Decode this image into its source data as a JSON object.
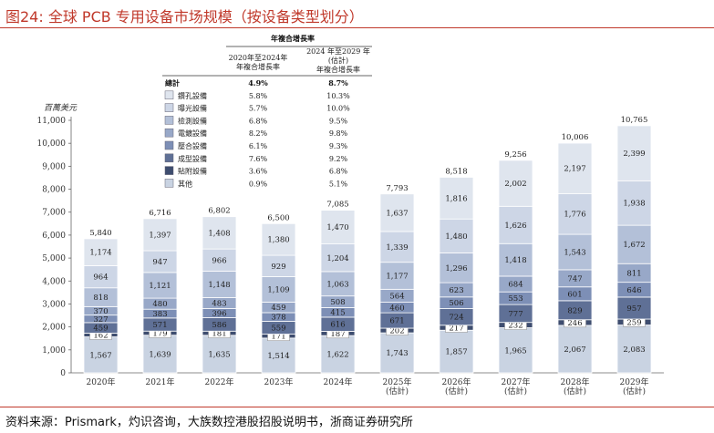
{
  "header": {
    "title": "图24:   全球 PCB 专用设备市场规模（按设备类型划分）"
  },
  "footer": {
    "source": "资料来源：Prismark，灼识咨询，大族数控港股招股说明书，浙商证券研究所"
  },
  "colors": {
    "accent": "#c0392b",
    "series": [
      "#c9d3e2",
      "#3e4d6f",
      "#5f7096",
      "#7d8fb6",
      "#98a8c8",
      "#b3c0d8",
      "#cdd6e6",
      "#dfe5ee"
    ]
  },
  "chart_data": {
    "type": "bar",
    "stacked": true,
    "ylabel": "百萬美元",
    "ylim": [
      0,
      11000
    ],
    "yticks": [
      0,
      1000,
      2000,
      3000,
      4000,
      5000,
      6000,
      7000,
      8000,
      9000,
      10000,
      11000
    ],
    "ytick_labels": [
      "0",
      "1,000",
      "2,000",
      "3,000",
      "4,000",
      "5,000",
      "6,000",
      "7,000",
      "8,000",
      "9,000",
      "10,000",
      "11,000"
    ],
    "categories": [
      "2020年",
      "2021年",
      "2022年",
      "2023年",
      "2024年",
      "2025年\n(估計)",
      "2026年\n(估計)",
      "2027年\n(估計)",
      "2028年\n(估計)",
      "2029年\n(估計)"
    ],
    "totals": [
      5840,
      6716,
      6802,
      6500,
      7085,
      7793,
      8518,
      9256,
      10006,
      10765
    ],
    "total_labels": [
      "5,840",
      "6,716",
      "6,802",
      "6,500",
      "7,085",
      "7,793",
      "8,518",
      "9,256",
      "10,006",
      "10,765"
    ],
    "series": [
      {
        "name": "其他",
        "values": [
          1567,
          1639,
          1635,
          1514,
          1622,
          1743,
          1857,
          1965,
          2067,
          2083
        ],
        "labels": [
          "1,567",
          "1,639",
          "1,635",
          "1,514",
          "1,622",
          "1,743",
          "1,857",
          "1,965",
          "2,067",
          "2,083"
        ]
      },
      {
        "name": "貼附設備",
        "values": [
          162,
          179,
          181,
          171,
          187,
          202,
          217,
          232,
          246,
          259
        ],
        "labels": [
          "162",
          "179",
          "181",
          "171",
          "187",
          "202",
          "217",
          "232",
          "246",
          "259"
        ]
      },
      {
        "name": "成型設備",
        "values": [
          459,
          571,
          586,
          559,
          616,
          671,
          724,
          777,
          829,
          957
        ],
        "labels": [
          "459",
          "571",
          "586",
          "559",
          "616",
          "671",
          "724",
          "777",
          "829",
          "957"
        ]
      },
      {
        "name": "壓合設備",
        "values": [
          327,
          383,
          396,
          378,
          415,
          460,
          506,
          553,
          601,
          646
        ],
        "labels": [
          "327",
          "383",
          "396",
          "378",
          "415",
          "460",
          "506",
          "553",
          "601",
          "646"
        ]
      },
      {
        "name": "電鍍設備",
        "values": [
          370,
          480,
          483,
          459,
          508,
          564,
          623,
          684,
          747,
          811
        ],
        "labels": [
          "370",
          "480",
          "483",
          "459",
          "508",
          "564",
          "623",
          "684",
          "747",
          "811"
        ]
      },
      {
        "name": "檢測設備",
        "values": [
          818,
          1121,
          1148,
          1109,
          1063,
          1177,
          1296,
          1418,
          1543,
          1672
        ],
        "labels": [
          "818",
          "1,121",
          "1,148",
          "1,109",
          "1,063",
          "1,177",
          "1,296",
          "1,418",
          "1,543",
          "1,672"
        ]
      },
      {
        "name": "曝光設備",
        "values": [
          964,
          947,
          966,
          929,
          1204,
          1339,
          1480,
          1626,
          1776,
          1938
        ],
        "labels": [
          "964",
          "947",
          "966",
          "929",
          "1,204",
          "1,339",
          "1,480",
          "1,626",
          "1,776",
          "1,938"
        ]
      },
      {
        "name": "鑽孔設備",
        "values": [
          1174,
          1397,
          1408,
          1380,
          1470,
          1637,
          1816,
          2002,
          2197,
          2399
        ],
        "labels": [
          "1,174",
          "1,397",
          "1,408",
          "1,380",
          "1,470",
          "1,637",
          "1,816",
          "2,002",
          "2,197",
          "2,399"
        ]
      }
    ],
    "cagr_table": {
      "group_header": "年複合增長率",
      "col1_header": "2020年至2024年\n年複合增長率",
      "col2_header": "2024 年至2029 年\n(估計)\n年複合增長率",
      "rows": [
        {
          "name": "總計",
          "c1": "4.9%",
          "c2": "8.7%",
          "bold": true
        },
        {
          "name": "鑽孔設備",
          "c1": "5.8%",
          "c2": "10.3%"
        },
        {
          "name": "曝光設備",
          "c1": "5.7%",
          "c2": "10.0%"
        },
        {
          "name": "檢測設備",
          "c1": "6.8%",
          "c2": "9.5%"
        },
        {
          "name": "電鍍設備",
          "c1": "8.2%",
          "c2": "9.8%"
        },
        {
          "name": "壓合設備",
          "c1": "6.1%",
          "c2": "9.3%"
        },
        {
          "name": "成型設備",
          "c1": "7.6%",
          "c2": "9.2%"
        },
        {
          "name": "貼附設備",
          "c1": "3.6%",
          "c2": "6.8%"
        },
        {
          "name": "其他",
          "c1": "0.9%",
          "c2": "5.1%"
        }
      ]
    }
  }
}
